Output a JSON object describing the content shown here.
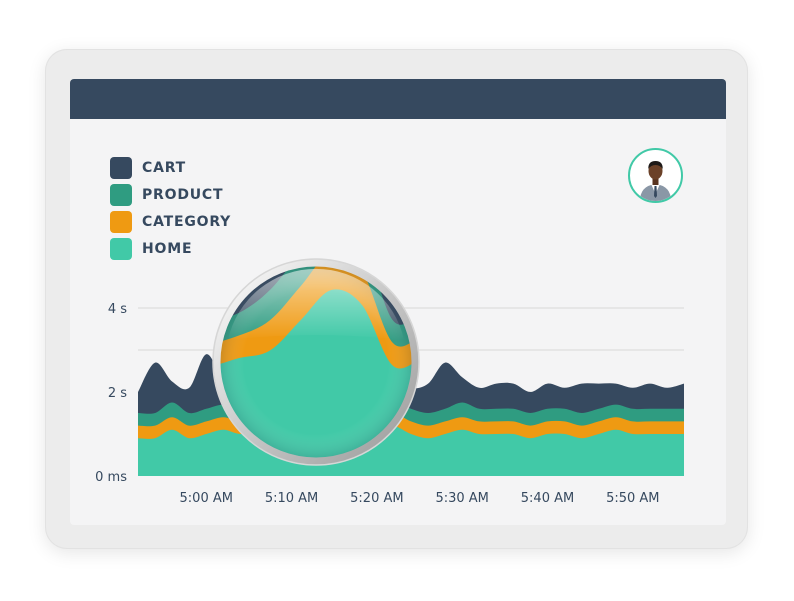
{
  "colors": {
    "cart": "#36495f",
    "product": "#2f9c81",
    "category": "#ef9a12",
    "home": "#41c9a7",
    "topbar": "#36495f",
    "grid": "#dedede"
  },
  "legend": {
    "items": [
      {
        "label": "CART",
        "color": "#36495f"
      },
      {
        "label": "PRODUCT",
        "color": "#2f9c81"
      },
      {
        "label": "CATEGORY",
        "color": "#ef9a12"
      },
      {
        "label": "HOME",
        "color": "#41c9a7"
      }
    ]
  },
  "avatar": {
    "icon": "user-avatar-icon"
  },
  "magnifier": {
    "icon": "magnifying-lens-icon"
  },
  "chart_data": {
    "type": "area",
    "stacked": true,
    "x": [
      "4:52 AM",
      "4:54 AM",
      "4:56 AM",
      "4:58 AM",
      "5:00 AM",
      "5:02 AM",
      "5:04 AM",
      "5:06 AM",
      "5:08 AM",
      "5:10 AM",
      "5:12 AM",
      "5:14 AM",
      "5:16 AM",
      "5:18 AM",
      "5:20 AM",
      "5:22 AM",
      "5:24 AM",
      "5:26 AM",
      "5:28 AM",
      "5:30 AM",
      "5:32 AM",
      "5:34 AM",
      "5:36 AM",
      "5:38 AM",
      "5:40 AM",
      "5:42 AM",
      "5:44 AM",
      "5:46 AM",
      "5:48 AM",
      "5:50 AM",
      "5:52 AM",
      "5:54 AM",
      "5:56 AM"
    ],
    "x_tick_labels": [
      "5:00 AM",
      "5:10 AM",
      "5:20 AM",
      "5:30 AM",
      "5:40 AM",
      "5:50 AM"
    ],
    "y_tick_labels": [
      "0 ms",
      "2 s",
      "4 s"
    ],
    "y_ticks": [
      0,
      2,
      4
    ],
    "ylim": [
      0,
      4.5
    ],
    "grid": true,
    "legend_position": "top-left",
    "series": [
      {
        "name": "HOME",
        "color": "#41c9a7",
        "values": [
          0.9,
          0.9,
          1.1,
          0.9,
          1.0,
          1.1,
          1.0,
          1.1,
          1.2,
          1.6,
          2.0,
          1.8,
          1.0,
          1.1,
          1.2,
          1.2,
          1.0,
          0.9,
          1.0,
          1.1,
          1.0,
          1.0,
          1.0,
          0.9,
          1.0,
          1.0,
          0.9,
          1.0,
          1.1,
          1.0,
          1.0,
          1.0,
          1.0
        ]
      },
      {
        "name": "CATEGORY",
        "color": "#ef9a12",
        "values": [
          0.3,
          0.3,
          0.3,
          0.3,
          0.3,
          0.3,
          0.3,
          0.3,
          0.4,
          0.45,
          0.5,
          0.45,
          0.3,
          0.3,
          0.3,
          0.3,
          0.3,
          0.3,
          0.3,
          0.3,
          0.3,
          0.3,
          0.3,
          0.3,
          0.3,
          0.3,
          0.3,
          0.3,
          0.3,
          0.3,
          0.3,
          0.3,
          0.3
        ]
      },
      {
        "name": "PRODUCT",
        "color": "#2f9c81",
        "values": [
          0.3,
          0.3,
          0.35,
          0.3,
          0.3,
          0.3,
          0.3,
          0.3,
          0.4,
          0.45,
          0.5,
          0.45,
          0.3,
          0.3,
          0.3,
          0.3,
          0.3,
          0.3,
          0.3,
          0.35,
          0.3,
          0.3,
          0.3,
          0.3,
          0.3,
          0.3,
          0.3,
          0.3,
          0.3,
          0.3,
          0.3,
          0.3,
          0.3
        ]
      },
      {
        "name": "CART",
        "color": "#36495f",
        "values": [
          0.5,
          1.2,
          0.5,
          0.6,
          1.3,
          0.6,
          0.6,
          0.7,
          0.8,
          0.9,
          1.2,
          0.8,
          0.5,
          0.6,
          0.6,
          0.6,
          0.5,
          0.7,
          1.1,
          0.6,
          0.5,
          0.6,
          0.6,
          0.5,
          0.6,
          0.5,
          0.7,
          0.6,
          0.5,
          0.5,
          0.6,
          0.5,
          0.6
        ]
      }
    ],
    "title": "",
    "xlabel": "",
    "ylabel": ""
  }
}
